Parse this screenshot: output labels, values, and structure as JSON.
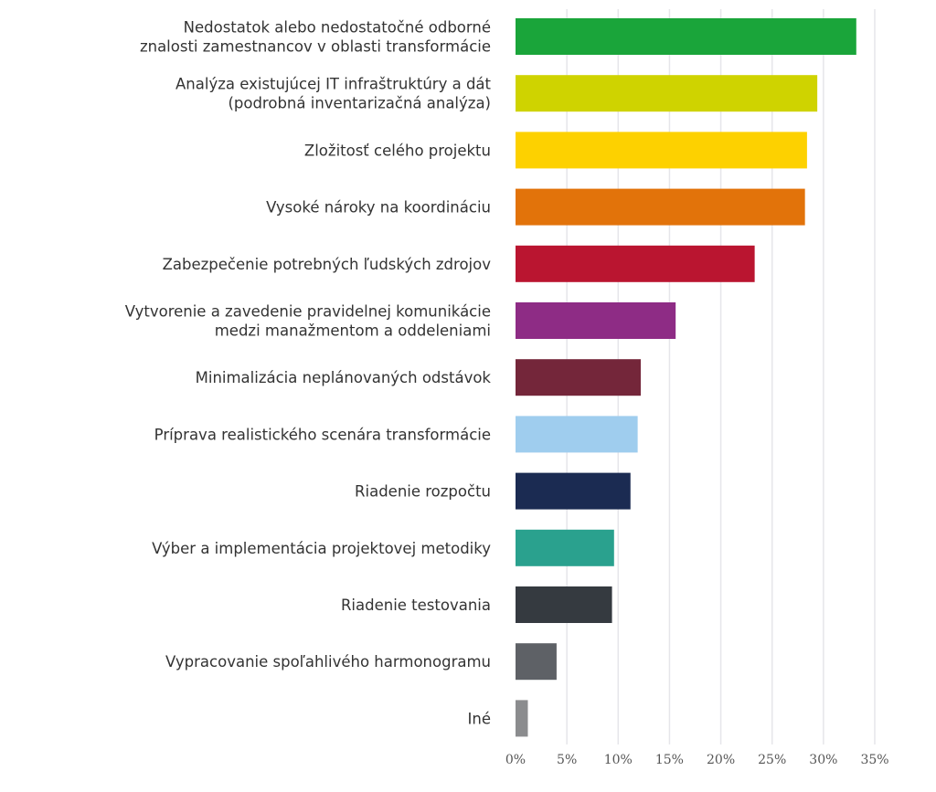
{
  "chart_data": {
    "type": "bar",
    "orientation": "horizontal",
    "title": "",
    "xlabel": "",
    "ylabel": "",
    "xlim": [
      0,
      35
    ],
    "x_ticks": [
      "0%",
      "5%",
      "10%",
      "15%",
      "20%",
      "25%",
      "30%",
      "35%"
    ],
    "grid": "vertical",
    "legend": "none",
    "categories": [
      [
        "Nedostatok alebo nedostatočné odborné",
        "znalosti zamestnancov v oblasti transformácie"
      ],
      [
        "Analýza existujúcej IT infraštruktúry a dát",
        "(podrobná inventarizačná analýza)"
      ],
      [
        "Zložitosť celého projektu"
      ],
      [
        "Vysoké nároky na koordináciu"
      ],
      [
        "Zabezpečenie potrebných ľudských zdrojov"
      ],
      [
        "Vytvorenie a zavedenie pravidelnej komunikácie",
        "medzi manažmentom a oddeleniami"
      ],
      [
        "Minimalizácia neplánovaných odstávok"
      ],
      [
        "Príprava realistického scenára transformácie"
      ],
      [
        "Riadenie rozpočtu"
      ],
      [
        "Výber a implementácia projektovej metodiky"
      ],
      [
        "Riadenie testovania"
      ],
      [
        "Vypracovanie spoľahlivého harmonogramu"
      ],
      [
        "Iné"
      ]
    ],
    "values": [
      33.2,
      29.4,
      28.4,
      28.2,
      23.3,
      15.6,
      12.2,
      11.9,
      11.2,
      9.6,
      9.4,
      4.0,
      1.2
    ],
    "colors": [
      "#1aa53a",
      "#cfd300",
      "#fdd100",
      "#e2730a",
      "#ba1530",
      "#8e2c85",
      "#74263a",
      "#9fcdee",
      "#1b2b52",
      "#2aa18e",
      "#353a40",
      "#5e6166",
      "#8b8c8e"
    ],
    "grid_color": "#e6e6ea"
  }
}
